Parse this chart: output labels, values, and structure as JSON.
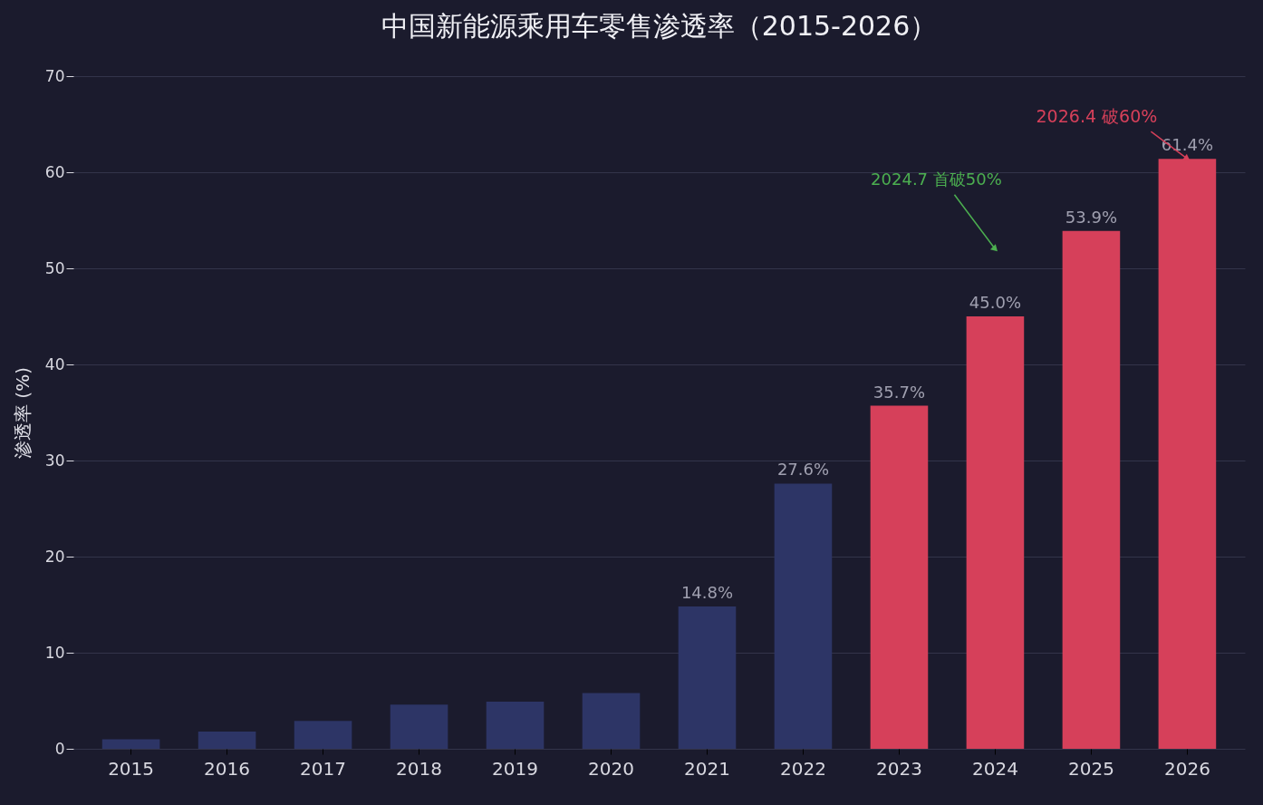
{
  "chart_data": {
    "type": "bar",
    "title": "中国新能源乘用车零售渗透率（2015-2026）",
    "ylabel": "渗透率 (%)",
    "categories": [
      "2015",
      "2016",
      "2017",
      "2018",
      "2019",
      "2020",
      "2021",
      "2022",
      "2023",
      "2024",
      "2025",
      "2026"
    ],
    "values": [
      1.0,
      1.8,
      2.9,
      4.6,
      4.9,
      5.8,
      14.8,
      27.6,
      35.7,
      45.0,
      53.9,
      61.4
    ],
    "colors": [
      "#2d3566",
      "#2d3566",
      "#2d3566",
      "#2d3566",
      "#2d3566",
      "#2d3566",
      "#2d3566",
      "#2d3566",
      "#d6405a",
      "#d6405a",
      "#d6405a",
      "#d6405a"
    ],
    "value_labels": [
      null,
      null,
      null,
      null,
      null,
      null,
      "14.8%",
      "27.6%",
      "35.7%",
      "45.0%",
      "53.9%",
      "61.4%"
    ],
    "ylim": [
      0,
      70
    ],
    "yticks": [
      0,
      10,
      20,
      30,
      40,
      50,
      60,
      70
    ],
    "grid": "y",
    "annotations": [
      {
        "text": "2024.7 首破50%",
        "x": "2024",
        "y": 52
      },
      {
        "text": "2026.4 破60%",
        "x": "2026",
        "y": 61.4
      }
    ]
  }
}
